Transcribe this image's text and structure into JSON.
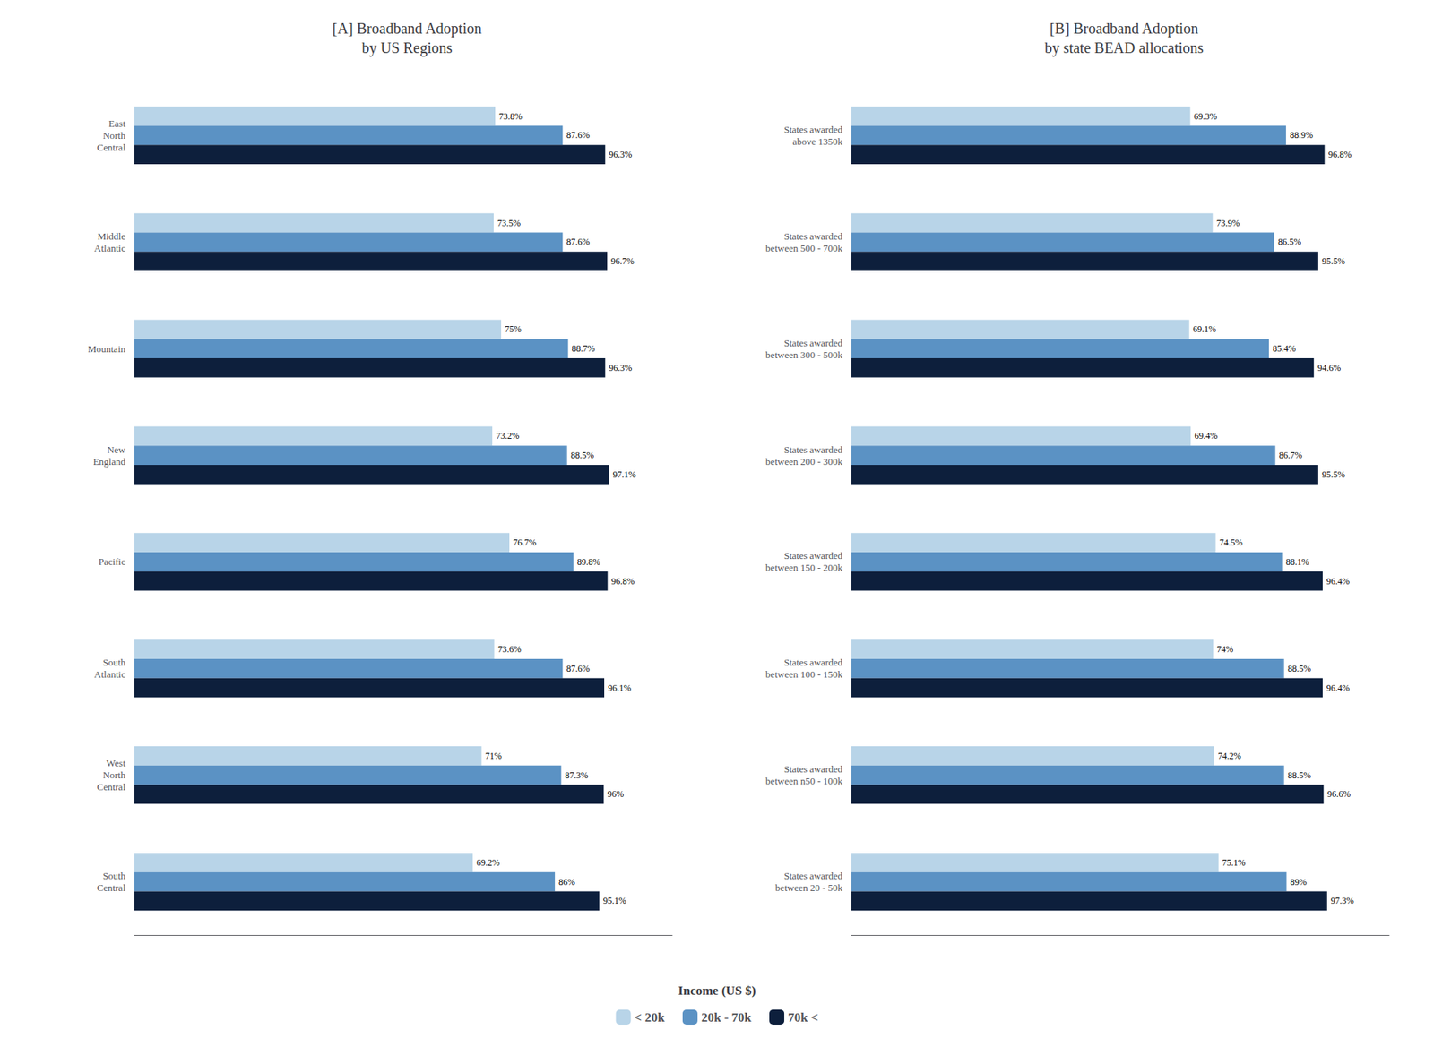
{
  "chart_data": [
    {
      "type": "bar",
      "orientation": "horizontal",
      "title": "[A] Broadband Adoption\nby US Regions",
      "categories": [
        "East\nNorth\nCentral",
        "Middle\nAtlantic",
        "Mountain",
        "New\nEngland",
        "Pacific",
        "South\nAtlantic",
        "West\nNorth\nCentral",
        "South\nCentral"
      ],
      "series": [
        {
          "name": "< 20k",
          "color": "#b8d4e8",
          "values": [
            73.8,
            73.5,
            75.0,
            73.2,
            76.7,
            73.6,
            71.0,
            69.2
          ],
          "value_labels": [
            "73.8%",
            "73.5%",
            "75%",
            "73.2%",
            "76.7%",
            "73.6%",
            "71%",
            "69.2%"
          ]
        },
        {
          "name": "20k - 70k",
          "color": "#5b92c4",
          "values": [
            87.6,
            87.6,
            88.7,
            88.5,
            89.8,
            87.6,
            87.3,
            86.0
          ],
          "value_labels": [
            "87.6%",
            "87.6%",
            "88.7%",
            "88.5%",
            "89.8%",
            "87.6%",
            "87.3%",
            "86%"
          ]
        },
        {
          "name": "70k <",
          "color": "#0d1f3c",
          "values": [
            96.3,
            96.7,
            96.3,
            97.1,
            96.8,
            96.1,
            96.0,
            95.1
          ],
          "value_labels": [
            "96.3%",
            "96.7%",
            "96.3%",
            "97.1%",
            "96.8%",
            "96.1%",
            "96%",
            "95.1%"
          ]
        }
      ],
      "xlim": [
        0,
        110
      ],
      "tick_labels": "y",
      "grid": false,
      "data_labels": true,
      "legend": "bottom",
      "legend_title": "Income (US $)"
    },
    {
      "type": "bar",
      "orientation": "horizontal",
      "title": "[B] Broadband Adoption\nby state BEAD allocations",
      "categories": [
        "States awarded\nabove 1350k",
        "States awarded\nbetween 500 - 700k",
        "States awarded\nbetween 300 - 500k",
        "States awarded\nbetween 200 - 300k",
        "States awarded\nbetween 150 - 200k",
        "States awarded\nbetween 100 - 150k",
        "States awarded\nbetween n50 - 100k",
        "States awarded\nbetween 20 - 50k"
      ],
      "series": [
        {
          "name": "< 20k",
          "color": "#b8d4e8",
          "values": [
            69.3,
            73.9,
            69.1,
            69.4,
            74.5,
            74.0,
            74.2,
            75.1
          ],
          "value_labels": [
            "69.3%",
            "73.9%",
            "69.1%",
            "69.4%",
            "74.5%",
            "74%",
            "74.2%",
            "75.1%"
          ]
        },
        {
          "name": "20k - 70k",
          "color": "#5b92c4",
          "values": [
            88.9,
            86.5,
            85.4,
            86.7,
            88.1,
            88.5,
            88.5,
            89.0
          ],
          "value_labels": [
            "88.9%",
            "86.5%",
            "85.4%",
            "86.7%",
            "88.1%",
            "88.5%",
            "88.5%",
            "89%"
          ]
        },
        {
          "name": "70k <",
          "color": "#0d1f3c",
          "values": [
            96.8,
            95.5,
            94.6,
            95.5,
            96.4,
            96.4,
            96.6,
            97.3
          ],
          "value_labels": [
            "96.8%",
            "95.5%",
            "94.6%",
            "95.5%",
            "96.4%",
            "96.4%",
            "96.6%",
            "97.3%"
          ]
        }
      ],
      "xlim": [
        0,
        110
      ],
      "tick_labels": "y",
      "grid": false,
      "data_labels": true
    }
  ]
}
